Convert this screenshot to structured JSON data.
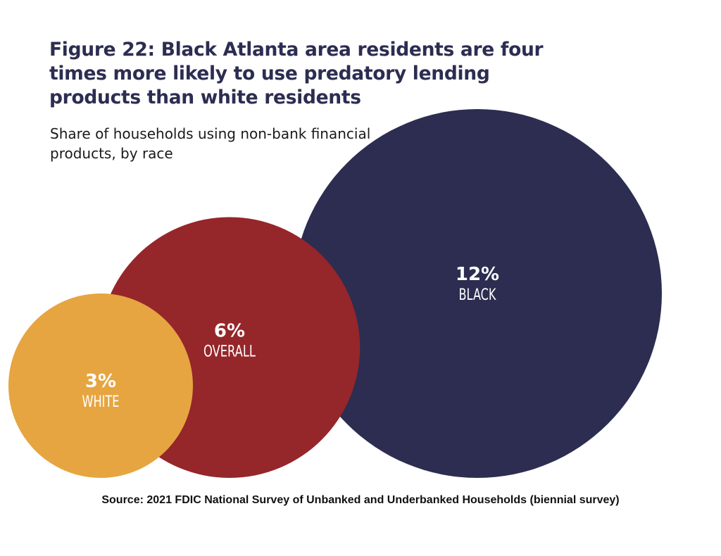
{
  "chart_data": {
    "type": "bubble",
    "title": "Figure 22: Black Atlanta area residents are four times more likely to use predatory lending products than white residents",
    "subtitle": "Share of households using non-bank financial products, by race",
    "source": "Source: 2021 FDIC National Survey of Unbanked and Underbanked Households (biennial survey)",
    "unit": "%",
    "points": [
      {
        "category": "WHITE",
        "value": 3,
        "label": "3%",
        "color": "#e6a540"
      },
      {
        "category": "OVERALL",
        "value": 6,
        "label": "6%",
        "color": "#95262a"
      },
      {
        "category": "BLACK",
        "value": 12,
        "label": "12%",
        "color": "#2c2d51"
      }
    ]
  }
}
